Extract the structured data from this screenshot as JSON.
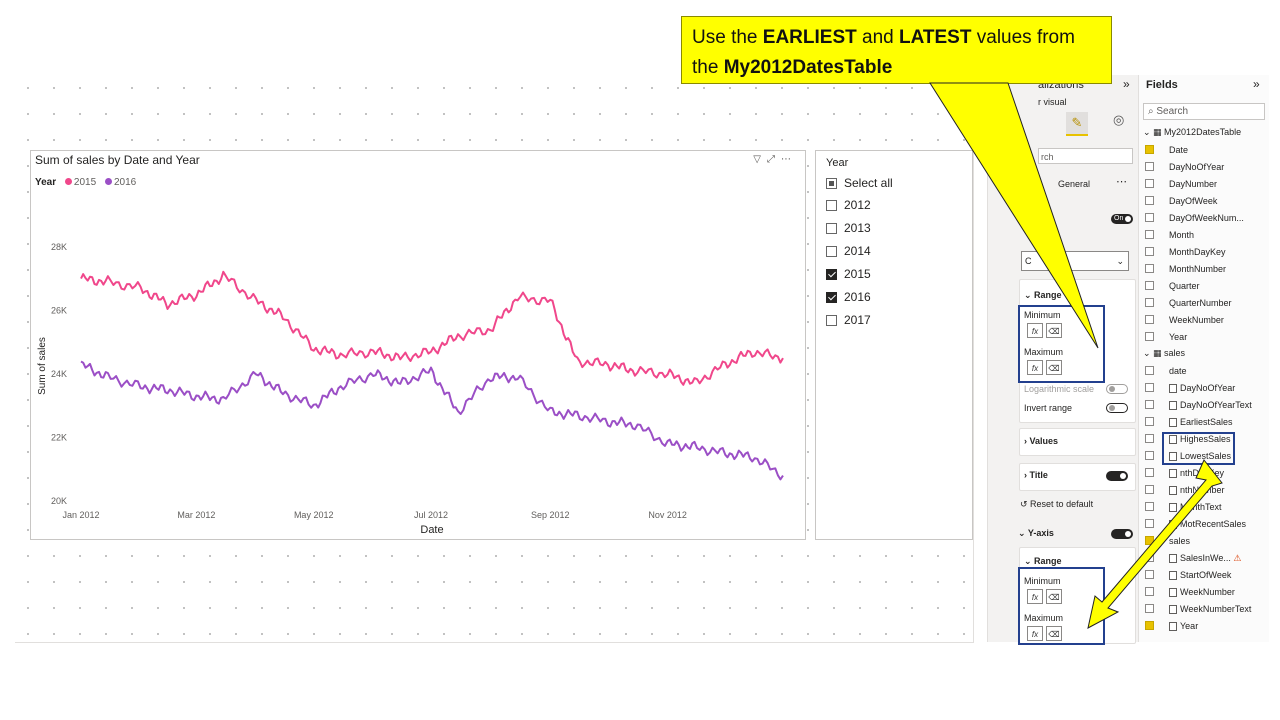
{
  "callout": {
    "line1_a": "Use the ",
    "line1_b": "EARLIEST",
    "line1_c": " and ",
    "line1_d": "LATEST",
    "line1_e": " values from",
    "line2_a": "the ",
    "line2_b": "My2012DatesTable"
  },
  "chart_data": {
    "type": "line",
    "title": "Sum of sales by Date and Year",
    "legend_title": "Year",
    "xlabel": "Date",
    "ylabel": "Sum of sales",
    "x_ticks": [
      "Jan 2012",
      "Mar 2012",
      "May 2012",
      "Jul 2012",
      "Sep 2012",
      "Nov 2012"
    ],
    "x": [
      "2012-01-01",
      "2012-01-15",
      "2012-02-01",
      "2012-02-15",
      "2012-03-01",
      "2012-03-15",
      "2012-04-01",
      "2012-04-15",
      "2012-05-01",
      "2012-05-15",
      "2012-06-01",
      "2012-06-15",
      "2012-07-01",
      "2012-07-15",
      "2012-08-01",
      "2012-08-15",
      "2012-09-01",
      "2012-09-15",
      "2012-10-01",
      "2012-10-15",
      "2012-11-01",
      "2012-11-15",
      "2012-12-01",
      "2012-12-15",
      "2012-12-31"
    ],
    "y_ticks": [
      "20K",
      "22K",
      "24K",
      "26K",
      "28K"
    ],
    "ylim": [
      20000,
      28500
    ],
    "series": [
      {
        "name": "2015",
        "color": "#f0478b",
        "values": [
          27000,
          26900,
          26700,
          26200,
          26500,
          27100,
          26300,
          25800,
          24800,
          24600,
          24700,
          24500,
          24700,
          25200,
          25400,
          26400,
          26300,
          24400,
          24300,
          24100,
          24000,
          23700,
          24300,
          24700,
          24500
        ]
      },
      {
        "name": "2016",
        "color": "#9b4fc6",
        "values": [
          24300,
          23900,
          23600,
          23500,
          23300,
          23200,
          24000,
          23400,
          23000,
          23600,
          24000,
          23700,
          24100,
          22800,
          23900,
          23900,
          22800,
          22700,
          22500,
          22400,
          21800,
          21700,
          21500,
          21400,
          20800
        ]
      }
    ]
  },
  "slicer": {
    "title": "Year",
    "items": [
      {
        "label": "Select all",
        "state": "partial"
      },
      {
        "label": "2012",
        "state": "unchecked"
      },
      {
        "label": "2013",
        "state": "unchecked"
      },
      {
        "label": "2014",
        "state": "unchecked"
      },
      {
        "label": "2015",
        "state": "checked"
      },
      {
        "label": "2016",
        "state": "checked"
      },
      {
        "label": "2017",
        "state": "unchecked"
      }
    ]
  },
  "viz_pane": {
    "title": "alizations",
    "subtitle": "r visual",
    "search": "rch",
    "general": "General",
    "on_label": "On",
    "off_label": "Off",
    "range": "Range",
    "minimum": "Minimum",
    "maximum": "Maximum",
    "log_scale": "Logarithmic scale",
    "invert_range": "Invert range",
    "values": "Values",
    "title_section": "Title",
    "reset": "Reset to default",
    "y_axis": "Y-axis",
    "range2": "Range",
    "minimum2": "Minimum",
    "maximum2": "Maximum",
    "dropdown_value": "C"
  },
  "fields_pane": {
    "title": "Fields",
    "search_placeholder": "Search",
    "tables": [
      {
        "name": "My2012DatesTable",
        "fields": [
          {
            "name": "Date",
            "checked": true
          },
          {
            "name": "DayNoOfYear",
            "checked": false
          },
          {
            "name": "DayNumber",
            "checked": false
          },
          {
            "name": "DayOfWeek",
            "checked": false
          },
          {
            "name": "DayOfWeekNum...",
            "checked": false
          },
          {
            "name": "Month",
            "checked": false
          },
          {
            "name": "MonthDayKey",
            "checked": false
          },
          {
            "name": "MonthNumber",
            "checked": false
          },
          {
            "name": "Quarter",
            "checked": false
          },
          {
            "name": "QuarterNumber",
            "checked": false
          },
          {
            "name": "WeekNumber",
            "checked": false
          },
          {
            "name": "Year",
            "checked": false
          }
        ]
      },
      {
        "name": "sales",
        "fields": [
          {
            "name": "date",
            "checked": false
          },
          {
            "name": "DayNoOfYear",
            "checked": false
          },
          {
            "name": "DayNoOfYearText",
            "checked": false
          },
          {
            "name": "EarliestSales",
            "checked": false
          },
          {
            "name": "HighesSales",
            "checked": false
          },
          {
            "name": "LowestSales",
            "checked": false
          },
          {
            "name": "nthDayKey",
            "checked": false
          },
          {
            "name": "nthNumber",
            "checked": false
          },
          {
            "name": "MonthText",
            "checked": false
          },
          {
            "name": "MotRecentSales",
            "checked": false
          },
          {
            "name": "sales",
            "checked": true
          },
          {
            "name": "SalesInWe...",
            "checked": false
          },
          {
            "name": "StartOfWeek",
            "checked": false
          },
          {
            "name": "WeekNumber",
            "checked": false
          },
          {
            "name": "WeekNumberText",
            "checked": false
          },
          {
            "name": "Year",
            "checked": true
          }
        ]
      }
    ]
  }
}
